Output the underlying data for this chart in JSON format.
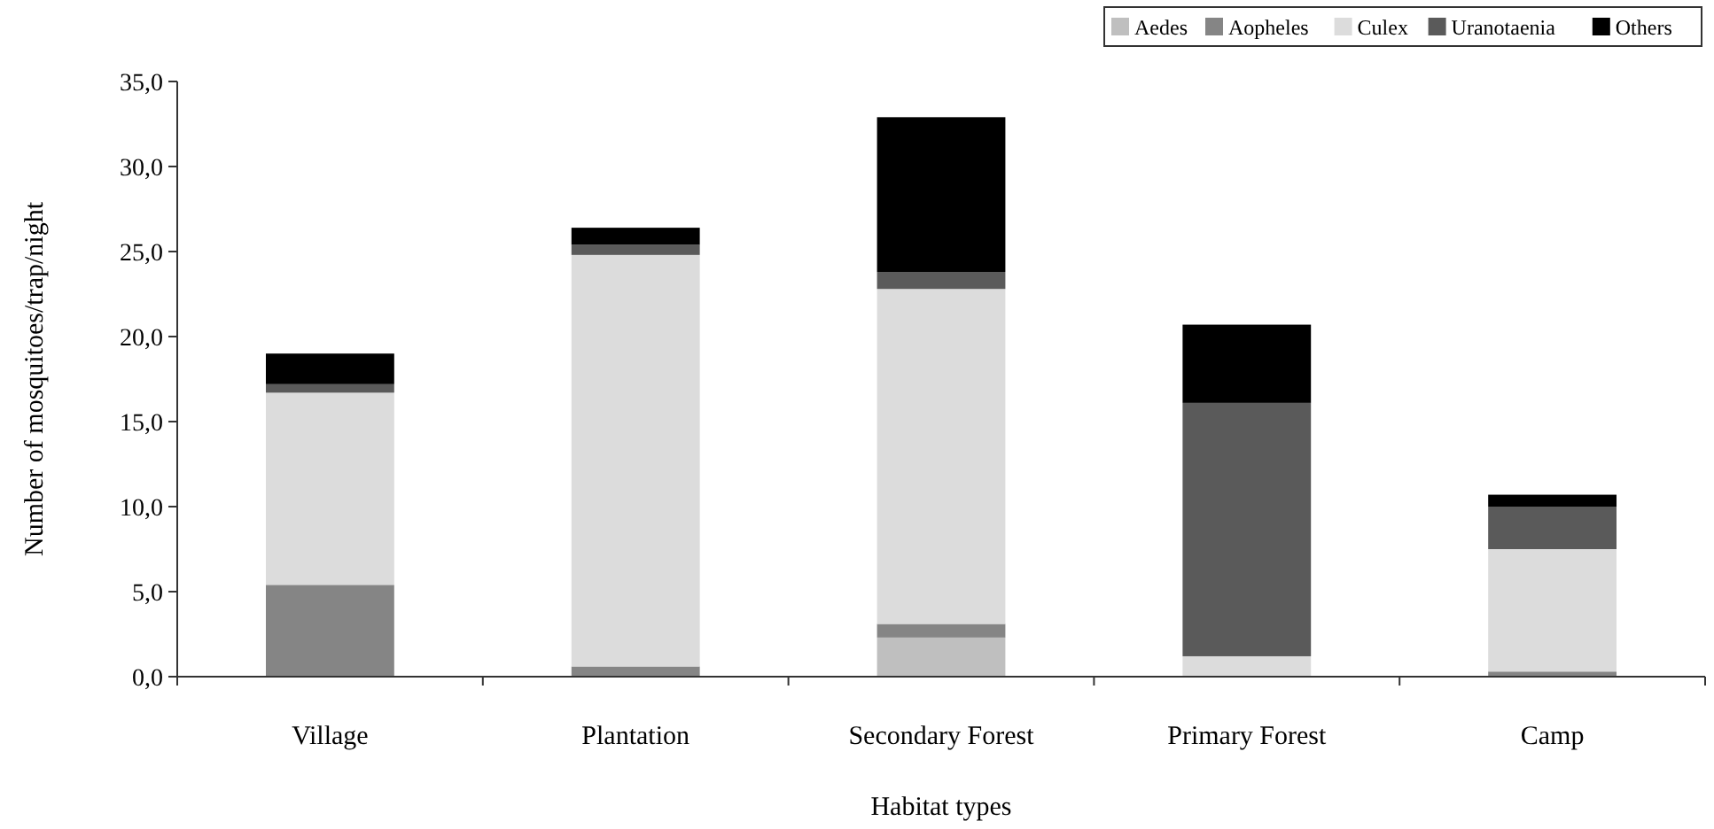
{
  "chart_data": {
    "type": "bar",
    "stacked": true,
    "xlabel": "Habitat types",
    "ylabel": "Number of mosquitoes/trap/night",
    "categories": [
      "Village",
      "Plantation",
      "Secondary Forest",
      "Primary Forest",
      "Camp"
    ],
    "series": [
      {
        "name": "Aedes",
        "color": "#bfbfbf",
        "values": [
          0,
          0,
          2.3,
          0,
          0
        ]
      },
      {
        "name": "Aopheles",
        "color": "#858585",
        "values": [
          5.4,
          0.6,
          0.8,
          0,
          0.3
        ]
      },
      {
        "name": "Culex",
        "color": "#dcdcdc",
        "values": [
          11.3,
          24.2,
          19.7,
          1.2,
          7.2
        ]
      },
      {
        "name": "Uranotaenia",
        "color": "#5a5a5a",
        "values": [
          0.5,
          0.6,
          1.0,
          14.9,
          2.5
        ]
      },
      {
        "name": "Others",
        "color": "#000000",
        "values": [
          1.8,
          1.0,
          9.1,
          4.6,
          0.7
        ]
      }
    ],
    "ylim": [
      0,
      35
    ],
    "yticks": [
      {
        "value": 0,
        "label": "0,0"
      },
      {
        "value": 5,
        "label": "5,0"
      },
      {
        "value": 10,
        "label": "10,0"
      },
      {
        "value": 15,
        "label": "15,0"
      },
      {
        "value": 20,
        "label": "20,0"
      },
      {
        "value": 25,
        "label": "25,0"
      },
      {
        "value": 30,
        "label": "30,0"
      },
      {
        "value": 35,
        "label": "35,0"
      }
    ],
    "legend": "top right"
  }
}
